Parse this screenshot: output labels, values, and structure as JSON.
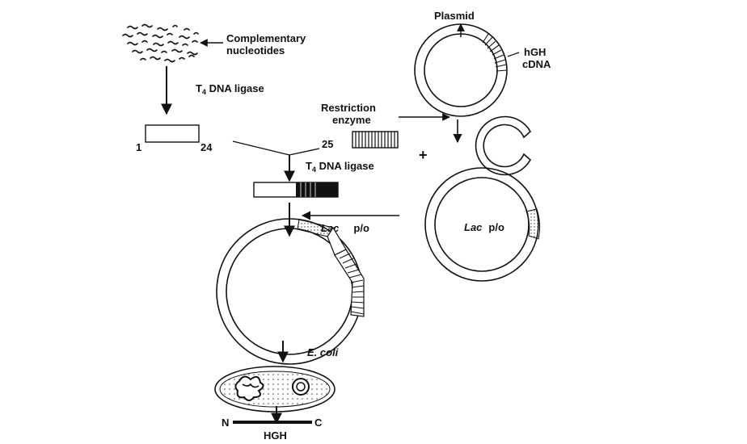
{
  "labels": {
    "complementary_line1": "Complementary",
    "complementary_line2": "nucleotides",
    "ligase_top_pre": "T",
    "ligase_top_sub": "4",
    "ligase_top_post": " DNA ligase",
    "ligase_mid_pre": "T",
    "ligase_mid_sub": "4",
    "ligase_mid_post": " DNA ligase",
    "num_1": "1",
    "num_24": "24",
    "num_25": "25",
    "restriction_line1": "Restriction",
    "restriction_line2": "enzyme",
    "plasmid": "Plasmid",
    "hgh_line1": "hGH",
    "hgh_line2": "cDNA",
    "plus": "+",
    "lac_right_italic": "Lac",
    "lac_right_po": "p/o",
    "lac_left_italic": "Lac",
    "lac_left_po": "p/o",
    "ecoli": "E.  coli",
    "n_terminal": "N",
    "c_terminal": "C",
    "product": "HGH"
  }
}
